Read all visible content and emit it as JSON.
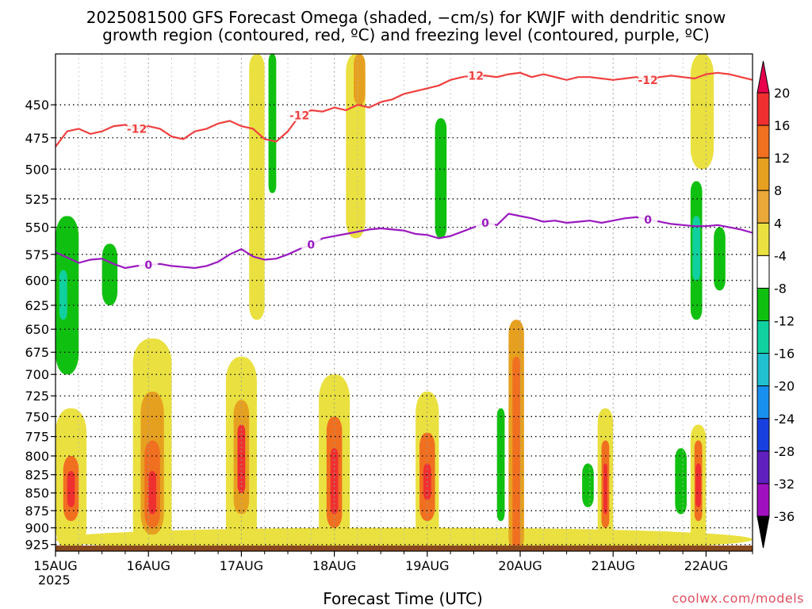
{
  "title_line1": "2025081500 GFS Forecast Omega (shaded, −cm/s) for KWJF with dendritic snow",
  "title_line2": "growth region (contoured, red, ºC) and freezing level (contoured, purple, ºC)",
  "credit": "coolwx.com/models",
  "chart_data": {
    "type": "heatmap",
    "title": "2025081500 GFS Forecast Omega (shaded, −cm/s) for KWJF with dendritic snow growth region (contoured, red, ºC) and freezing level (contoured, purple, ºC)",
    "xlabel": "Forecast Time (UTC)",
    "year_label": "2025",
    "ylabel": "",
    "x_ticks": [
      "15AUG",
      "16AUG",
      "17AUG",
      "18AUG",
      "19AUG",
      "20AUG",
      "21AUG",
      "22AUG"
    ],
    "x_range_hours": [
      0,
      180
    ],
    "y_ticks": [
      450,
      475,
      500,
      525,
      550,
      575,
      600,
      625,
      650,
      675,
      700,
      725,
      750,
      775,
      800,
      825,
      850,
      875,
      900,
      925
    ],
    "y_range_hpa": [
      414,
      935
    ],
    "y_scale": "log-pressure",
    "grid": true,
    "colorbar": {
      "levels": [
        20,
        16,
        12,
        8,
        4,
        -4,
        -8,
        -12,
        -16,
        -20,
        -24,
        -28,
        -32,
        -36
      ],
      "colors": [
        "#e8004e",
        "#f03030",
        "#f07020",
        "#e6a020",
        "#eaa838",
        "#eae040",
        "#ffffff",
        "#10c010",
        "#10d0a0",
        "#20c0d0",
        "#1890f0",
        "#1840e0",
        "#6020c0",
        "#a010c0",
        "#b0b0b0",
        "#000000"
      ]
    },
    "dendritic_contour": {
      "label": "-12",
      "color": "#f04040",
      "x_hours": [
        0,
        3,
        6,
        9,
        12,
        15,
        18,
        21,
        24,
        27,
        30,
        33,
        36,
        39,
        42,
        45,
        48,
        51,
        54,
        57,
        60,
        63,
        66,
        69,
        72,
        75,
        78,
        81,
        84,
        87,
        90,
        93,
        96,
        99,
        102,
        105,
        108,
        111,
        114,
        117,
        120,
        123,
        126,
        129,
        132,
        135,
        138,
        141,
        144,
        147,
        150,
        153,
        156,
        159,
        162,
        165,
        168,
        171,
        174,
        177,
        180
      ],
      "temps_level_hpa": [
        482,
        470,
        468,
        472,
        470,
        466,
        465,
        468,
        466,
        468,
        474,
        476,
        470,
        468,
        464,
        462,
        466,
        468,
        476,
        478,
        470,
        458,
        454,
        455,
        452,
        454,
        450,
        452,
        448,
        446,
        442,
        440,
        438,
        436,
        432,
        430,
        429,
        429,
        430,
        428,
        427,
        430,
        428,
        430,
        432,
        430,
        430,
        431,
        432,
        431,
        430,
        432,
        430,
        429,
        430,
        431,
        428,
        427,
        428,
        430,
        432
      ]
    },
    "freezing_contour": {
      "label": "0",
      "color": "#9a18c0",
      "x_hours": [
        0,
        3,
        6,
        9,
        12,
        15,
        18,
        21,
        24,
        27,
        30,
        33,
        36,
        39,
        42,
        45,
        48,
        51,
        54,
        57,
        60,
        63,
        66,
        69,
        72,
        75,
        78,
        81,
        84,
        87,
        90,
        93,
        96,
        99,
        102,
        105,
        108,
        111,
        114,
        117,
        120,
        123,
        126,
        129,
        132,
        135,
        138,
        141,
        144,
        147,
        150,
        153,
        156,
        159,
        162,
        165,
        168,
        171,
        174,
        177,
        180
      ],
      "level_hpa": [
        573,
        578,
        583,
        580,
        579,
        584,
        588,
        586,
        585,
        584,
        586,
        587,
        588,
        586,
        582,
        575,
        570,
        577,
        580,
        579,
        575,
        570,
        566,
        560,
        558,
        556,
        554,
        552,
        551,
        552,
        553,
        556,
        557,
        560,
        558,
        554,
        550,
        546,
        548,
        538,
        540,
        542,
        545,
        544,
        546,
        545,
        544,
        546,
        544,
        542,
        541,
        543,
        545,
        547,
        548,
        549,
        549,
        548,
        550,
        552,
        555
      ]
    },
    "omega_cells": [
      {
        "t0": 0,
        "t1": 8,
        "p0": 740,
        "p1": 935,
        "value": 6
      },
      {
        "t0": 2,
        "t1": 6,
        "p0": 800,
        "p1": 890,
        "value": 14
      },
      {
        "t0": 3,
        "t1": 5,
        "p0": 820,
        "p1": 870,
        "value": 18
      },
      {
        "t0": 0,
        "t1": 6,
        "p0": 540,
        "p1": 700,
        "value": -6
      },
      {
        "t0": 1,
        "t1": 3,
        "p0": 590,
        "p1": 640,
        "value": -11
      },
      {
        "t0": 12,
        "t1": 16,
        "p0": 565,
        "p1": 625,
        "value": -6
      },
      {
        "t0": 20,
        "t1": 30,
        "p0": 660,
        "p1": 935,
        "value": 6
      },
      {
        "t0": 22,
        "t1": 28,
        "p0": 720,
        "p1": 910,
        "value": 10
      },
      {
        "t0": 23,
        "t1": 27,
        "p0": 780,
        "p1": 900,
        "value": 14
      },
      {
        "t0": 24,
        "t1": 26,
        "p0": 820,
        "p1": 880,
        "value": 18
      },
      {
        "t0": 44,
        "t1": 52,
        "p0": 680,
        "p1": 935,
        "value": 6
      },
      {
        "t0": 46,
        "t1": 50,
        "p0": 730,
        "p1": 880,
        "value": 10
      },
      {
        "t0": 47,
        "t1": 49,
        "p0": 760,
        "p1": 850,
        "value": 16
      },
      {
        "t0": 50,
        "t1": 54,
        "p0": 414,
        "p1": 640,
        "value": 5
      },
      {
        "t0": 55,
        "t1": 57,
        "p0": 414,
        "p1": 520,
        "value": -6
      },
      {
        "t0": 68,
        "t1": 76,
        "p0": 700,
        "p1": 935,
        "value": 6
      },
      {
        "t0": 70,
        "t1": 74,
        "p0": 750,
        "p1": 900,
        "value": 12
      },
      {
        "t0": 71,
        "t1": 73,
        "p0": 790,
        "p1": 880,
        "value": 18
      },
      {
        "t0": 75,
        "t1": 80,
        "p0": 414,
        "p1": 560,
        "value": 5
      },
      {
        "t0": 77,
        "t1": 80,
        "p0": 414,
        "p1": 450,
        "value": 10
      },
      {
        "t0": 93,
        "t1": 99,
        "p0": 720,
        "p1": 935,
        "value": 6
      },
      {
        "t0": 94,
        "t1": 98,
        "p0": 770,
        "p1": 890,
        "value": 12
      },
      {
        "t0": 95,
        "t1": 97,
        "p0": 810,
        "p1": 860,
        "value": 18
      },
      {
        "t0": 98,
        "t1": 101,
        "p0": 460,
        "p1": 560,
        "value": -6
      },
      {
        "t0": 114,
        "t1": 116,
        "p0": 740,
        "p1": 890,
        "value": -7
      },
      {
        "t0": 117,
        "t1": 121,
        "p0": 640,
        "p1": 935,
        "value": 8
      },
      {
        "t0": 118,
        "t1": 120,
        "p0": 680,
        "p1": 935,
        "value": 14
      },
      {
        "t0": 140,
        "t1": 144,
        "p0": 740,
        "p1": 935,
        "value": 6
      },
      {
        "t0": 141,
        "t1": 143,
        "p0": 780,
        "p1": 900,
        "value": 14
      },
      {
        "t0": 141.5,
        "t1": 142.5,
        "p0": 810,
        "p1": 880,
        "value": 18
      },
      {
        "t0": 136,
        "t1": 139,
        "p0": 810,
        "p1": 870,
        "value": -6
      },
      {
        "t0": 164,
        "t1": 170,
        "p0": 414,
        "p1": 500,
        "value": 6
      },
      {
        "t0": 164,
        "t1": 168,
        "p0": 760,
        "p1": 935,
        "value": 6
      },
      {
        "t0": 165,
        "t1": 167,
        "p0": 780,
        "p1": 890,
        "value": 12
      },
      {
        "t0": 165.3,
        "t1": 166.7,
        "p0": 810,
        "p1": 870,
        "value": 18
      },
      {
        "t0": 160,
        "t1": 163,
        "p0": 790,
        "p1": 880,
        "value": -7
      },
      {
        "t0": 164,
        "t1": 167,
        "p0": 510,
        "p1": 640,
        "value": -6
      },
      {
        "t0": 164.5,
        "t1": 166.5,
        "p0": 540,
        "p1": 600,
        "value": -11
      },
      {
        "t0": 170,
        "t1": 173,
        "p0": 550,
        "p1": 610,
        "value": -6
      },
      {
        "t0": 0,
        "t1": 180,
        "p0": 900,
        "p1": 935,
        "value": 5
      }
    ]
  }
}
